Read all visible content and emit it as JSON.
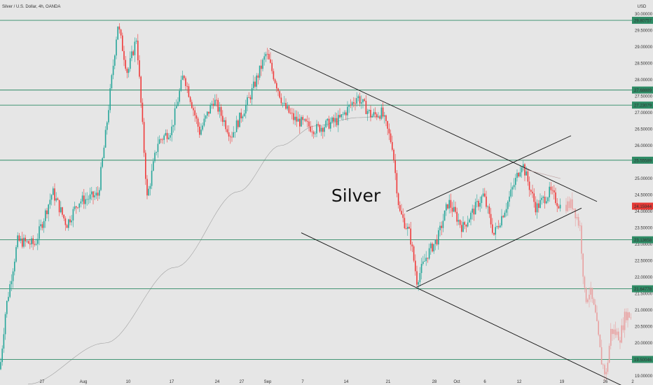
{
  "header": {
    "title": "Silver / U.S. Dollar, 4h, OANDA"
  },
  "chart_data": {
    "type": "candlestick",
    "title": "Silver / U.S. Dollar, 4h, OANDA",
    "annotation": "Silver",
    "currency": "USD",
    "ylim": [
      18.7,
      30.2
    ],
    "y_ticks": [
      "30.00000",
      "29.50000",
      "29.00000",
      "28.50000",
      "28.00000",
      "27.50000",
      "27.00000",
      "26.50000",
      "26.00000",
      "25.50000",
      "25.00000",
      "24.50000",
      "24.00000",
      "23.50000",
      "23.00000",
      "22.50000",
      "22.00000",
      "21.50000",
      "21.00000",
      "20.50000",
      "20.00000",
      "19.50000",
      "19.00000"
    ],
    "x_ticks": [
      "27",
      "Aug",
      "10",
      "17",
      "24",
      "27",
      "Sep",
      "7",
      "14",
      "21",
      "28",
      "Oct",
      "6",
      "12",
      "19",
      "26",
      "2"
    ],
    "horizontal_levels": [
      29.80757,
      27.68889,
      27.23079,
      25.55589,
      23.13658,
      21.64778,
      19.50046
    ],
    "level_labels": [
      "29.80757",
      "27.68889",
      "27.23079",
      "25.55589",
      "23.13658",
      "21.64778",
      "19.50046"
    ],
    "last_price": 24.15944,
    "last_price_label": "24.15944",
    "colors": {
      "up": "#26a69a",
      "down": "#ef3b3b",
      "level": "#2e8b65",
      "projection": "#e8a0a0",
      "background": "#e6e6e6"
    },
    "series": [
      {
        "type": "candles",
        "waypoints": [
          [
            0,
            19.2
          ],
          [
            8,
            21.0
          ],
          [
            25,
            23.1
          ],
          [
            50,
            23.0
          ],
          [
            75,
            24.6
          ],
          [
            95,
            23.6
          ],
          [
            112,
            24.3
          ],
          [
            140,
            24.5
          ],
          [
            150,
            26.2
          ],
          [
            168,
            29.7
          ],
          [
            182,
            28.2
          ],
          [
            195,
            29.3
          ],
          [
            210,
            24.4
          ],
          [
            225,
            26.1
          ],
          [
            245,
            26.5
          ],
          [
            262,
            28.2
          ],
          [
            285,
            26.4
          ],
          [
            305,
            27.4
          ],
          [
            330,
            26.3
          ],
          [
            355,
            27.4
          ],
          [
            380,
            28.8
          ],
          [
            405,
            27.2
          ],
          [
            420,
            26.8
          ],
          [
            450,
            26.5
          ],
          [
            485,
            26.8
          ],
          [
            510,
            27.5
          ],
          [
            530,
            26.9
          ],
          [
            545,
            27.0
          ],
          [
            560,
            26.0
          ],
          [
            570,
            24.0
          ],
          [
            585,
            23.3
          ],
          [
            595,
            21.9
          ],
          [
            610,
            22.7
          ],
          [
            625,
            23.2
          ],
          [
            640,
            24.3
          ],
          [
            660,
            23.5
          ],
          [
            690,
            24.5
          ],
          [
            705,
            23.3
          ],
          [
            725,
            24.3
          ],
          [
            745,
            25.5
          ],
          [
            765,
            24.1
          ],
          [
            785,
            24.6
          ],
          [
            800,
            24.15
          ]
        ]
      },
      {
        "type": "projection",
        "waypoints": [
          [
            808,
            24.2
          ],
          [
            818,
            24.2
          ],
          [
            828,
            23.5
          ],
          [
            835,
            21.3
          ],
          [
            842,
            21.6
          ],
          [
            850,
            20.8
          ],
          [
            858,
            19.5
          ],
          [
            865,
            19.0
          ],
          [
            872,
            20.4
          ],
          [
            885,
            20.2
          ],
          [
            893,
            20.9
          ],
          [
            903,
            20.8
          ]
        ]
      }
    ],
    "moving_average": [
      [
        40,
        18.75
      ],
      [
        150,
        20.0
      ],
      [
        250,
        22.3
      ],
      [
        340,
        24.6
      ],
      [
        400,
        26.0
      ],
      [
        450,
        26.6
      ],
      [
        510,
        26.85
      ],
      [
        550,
        26.9
      ]
    ],
    "trendlines": [
      {
        "label": "upper descending channel",
        "from": [
          385,
          28.95
        ],
        "to": [
          852,
          24.3
        ]
      },
      {
        "label": "lower descending channel",
        "from": [
          430,
          23.35
        ],
        "to": [
          898,
          18.6
        ]
      },
      {
        "label": "rising channel top",
        "from": [
          580,
          24.0
        ],
        "to": [
          815,
          26.3
        ]
      },
      {
        "label": "rising channel bottom",
        "from": [
          595,
          21.7
        ],
        "to": [
          830,
          24.1
        ]
      },
      {
        "label": "faint line",
        "from": [
          745,
          25.3
        ],
        "to": [
          800,
          25.0
        ]
      }
    ]
  }
}
